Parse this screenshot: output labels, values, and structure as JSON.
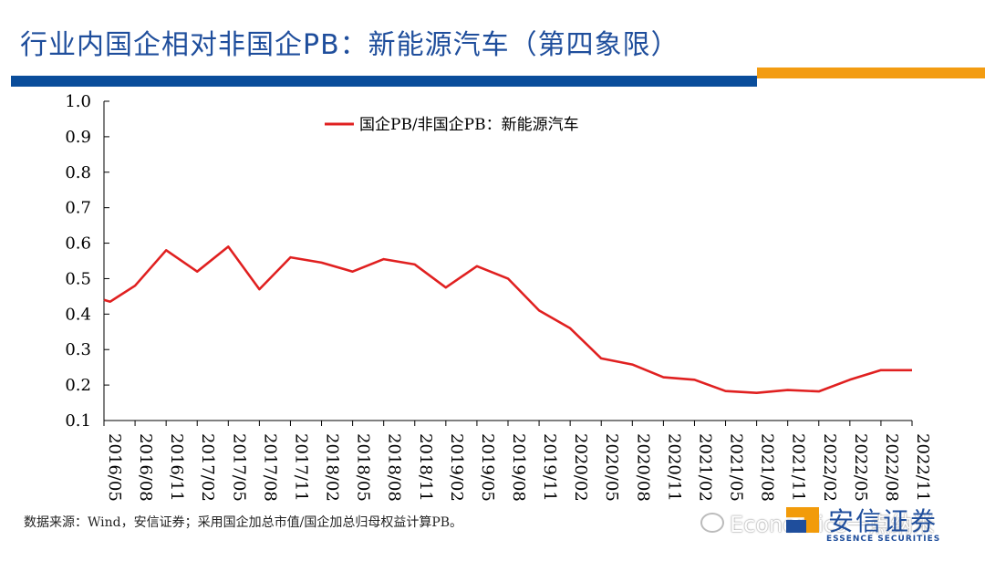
{
  "header": {
    "title": "行业内国企相对非国企PB：新能源汽车（第四象限）"
  },
  "colors": {
    "title": "#1f4e9c",
    "bar_blue": "#0a4d9b",
    "bar_orange": "#f39c12",
    "series_line": "#e02020"
  },
  "footnote": "数据来源：Wind，安信证券；采用国企加总市值/国企加总归母权益计算PB。",
  "watermark": {
    "text": "Economics一点纳米",
    "icon": "wechat-icon"
  },
  "logo": {
    "cn": "安信证券",
    "en": "ESSENCE SECURITIES"
  },
  "chart_data": {
    "type": "line",
    "title": "",
    "xlabel": "",
    "ylabel": "",
    "ylim": [
      0.1,
      1.0
    ],
    "yticks": [
      "1.0",
      "0.9",
      "0.8",
      "0.7",
      "0.6",
      "0.5",
      "0.4",
      "0.3",
      "0.2",
      "0.1"
    ],
    "ytick_values": [
      1.0,
      0.9,
      0.8,
      0.7,
      0.6,
      0.5,
      0.4,
      0.3,
      0.2,
      0.1
    ],
    "grid": false,
    "legend_position": "top-center",
    "categories": [
      "2016/05",
      "2016/08",
      "2016/11",
      "2017/02",
      "2017/05",
      "2017/08",
      "2017/11",
      "2018/02",
      "2018/05",
      "2018/08",
      "2018/11",
      "2019/02",
      "2019/05",
      "2019/08",
      "2019/11",
      "2020/02",
      "2020/05",
      "2020/08",
      "2020/11",
      "2021/02",
      "2021/05",
      "2021/08",
      "2021/11",
      "2022/02",
      "2022/05",
      "2022/08",
      "2022/11"
    ],
    "series": [
      {
        "name": "国企PB/非国企PB：新能源汽车",
        "points": [
          {
            "x": 0,
            "y": 0.44
          },
          {
            "x": 0.2,
            "y": 0.435
          },
          {
            "x": 1,
            "y": 0.48
          },
          {
            "x": 2,
            "y": 0.58
          },
          {
            "x": 3,
            "y": 0.52
          },
          {
            "x": 4,
            "y": 0.59
          },
          {
            "x": 5,
            "y": 0.47
          },
          {
            "x": 6,
            "y": 0.56
          },
          {
            "x": 7,
            "y": 0.545
          },
          {
            "x": 8,
            "y": 0.52
          },
          {
            "x": 9,
            "y": 0.555
          },
          {
            "x": 10,
            "y": 0.54
          },
          {
            "x": 11,
            "y": 0.475
          },
          {
            "x": 12,
            "y": 0.535
          },
          {
            "x": 13,
            "y": 0.5
          },
          {
            "x": 14,
            "y": 0.41
          },
          {
            "x": 15,
            "y": 0.36
          },
          {
            "x": 16,
            "y": 0.275
          },
          {
            "x": 17,
            "y": 0.258
          },
          {
            "x": 18,
            "y": 0.222
          },
          {
            "x": 19,
            "y": 0.215
          },
          {
            "x": 20,
            "y": 0.183
          },
          {
            "x": 21,
            "y": 0.178
          },
          {
            "x": 22,
            "y": 0.186
          },
          {
            "x": 23,
            "y": 0.182
          },
          {
            "x": 24,
            "y": 0.215
          },
          {
            "x": 25,
            "y": 0.242
          },
          {
            "x": 26,
            "y": 0.242
          }
        ]
      }
    ]
  }
}
